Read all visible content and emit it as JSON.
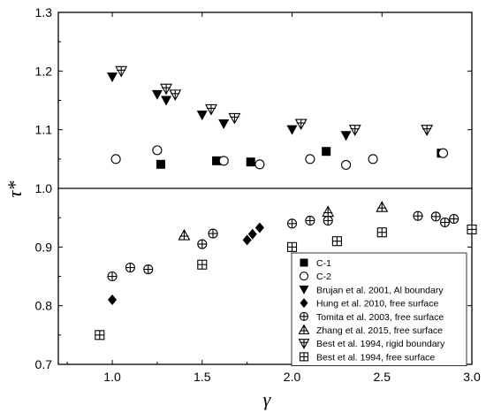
{
  "chart_data": {
    "type": "scatter",
    "xlabel": "γ",
    "ylabel": "τ*",
    "xlim": [
      0.7,
      3.0
    ],
    "ylim": [
      0.7,
      1.3
    ],
    "x_ticks": [
      "1.0",
      "1.5",
      "2.0",
      "2.5",
      "3.0"
    ],
    "y_ticks": [
      "0.7",
      "0.8",
      "0.9",
      "1.0",
      "1.1",
      "1.2",
      "1.3"
    ],
    "reference_line": 1.0,
    "legend_position": "bottom-right",
    "series": [
      {
        "name": "C-1",
        "marker": "square-filled",
        "x": [
          1.27,
          1.58,
          1.77,
          2.19,
          2.83
        ],
        "y": [
          1.041,
          1.047,
          1.045,
          1.063,
          1.06
        ]
      },
      {
        "name": "C-2",
        "marker": "circle-open",
        "x": [
          1.02,
          1.25,
          1.62,
          1.82,
          2.1,
          2.3,
          2.45,
          2.84
        ],
        "y": [
          1.05,
          1.065,
          1.047,
          1.041,
          1.05,
          1.04,
          1.05,
          1.06
        ]
      },
      {
        "name": "Brujan et al. 2001, Al boundary",
        "marker": "triangle-down-filled",
        "x": [
          1.0,
          1.25,
          1.3,
          1.5,
          1.62,
          2.0,
          2.3
        ],
        "y": [
          1.19,
          1.16,
          1.15,
          1.125,
          1.11,
          1.1,
          1.09
        ]
      },
      {
        "name": "Hung et al. 2010, free surface",
        "marker": "diamond-filled",
        "x": [
          1.0,
          1.75,
          1.78,
          1.82
        ],
        "y": [
          0.81,
          0.912,
          0.922,
          0.933
        ]
      },
      {
        "name": "Tomita et al. 2003, free surface",
        "marker": "circle-cross",
        "x": [
          1.0,
          1.1,
          1.2,
          1.5,
          1.56,
          2.0,
          2.1,
          2.2,
          2.7,
          2.8,
          2.85,
          2.9
        ],
        "y": [
          0.85,
          0.865,
          0.862,
          0.905,
          0.923,
          0.94,
          0.945,
          0.945,
          0.953,
          0.952,
          0.942,
          0.948
        ]
      },
      {
        "name": "Zhang et al. 2015, free surface",
        "marker": "triangle-up-line",
        "x": [
          1.4,
          2.2,
          2.5
        ],
        "y": [
          0.92,
          0.96,
          0.968
        ]
      },
      {
        "name": "Best et al. 1994, rigid boundary",
        "marker": "triangle-down-line",
        "x": [
          1.05,
          1.3,
          1.35,
          1.55,
          1.68,
          2.05,
          2.35,
          2.75
        ],
        "y": [
          1.2,
          1.17,
          1.16,
          1.135,
          1.12,
          1.11,
          1.1,
          1.1
        ]
      },
      {
        "name": "Best et al. 1994, free surface",
        "marker": "square-cross",
        "x": [
          0.93,
          1.5,
          2.0,
          2.25,
          2.5,
          3.0
        ],
        "y": [
          0.75,
          0.87,
          0.9,
          0.91,
          0.925,
          0.93
        ]
      }
    ]
  }
}
